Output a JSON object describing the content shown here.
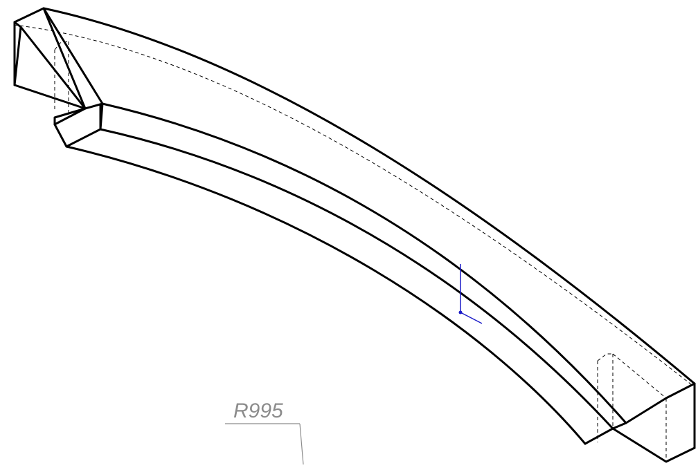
{
  "drawing": {
    "dimension_label": "R995",
    "colors": {
      "background": "#ffffff",
      "edges": "#000000",
      "dimension": "#8c8c8c",
      "triad": "#1c1cc8"
    }
  }
}
